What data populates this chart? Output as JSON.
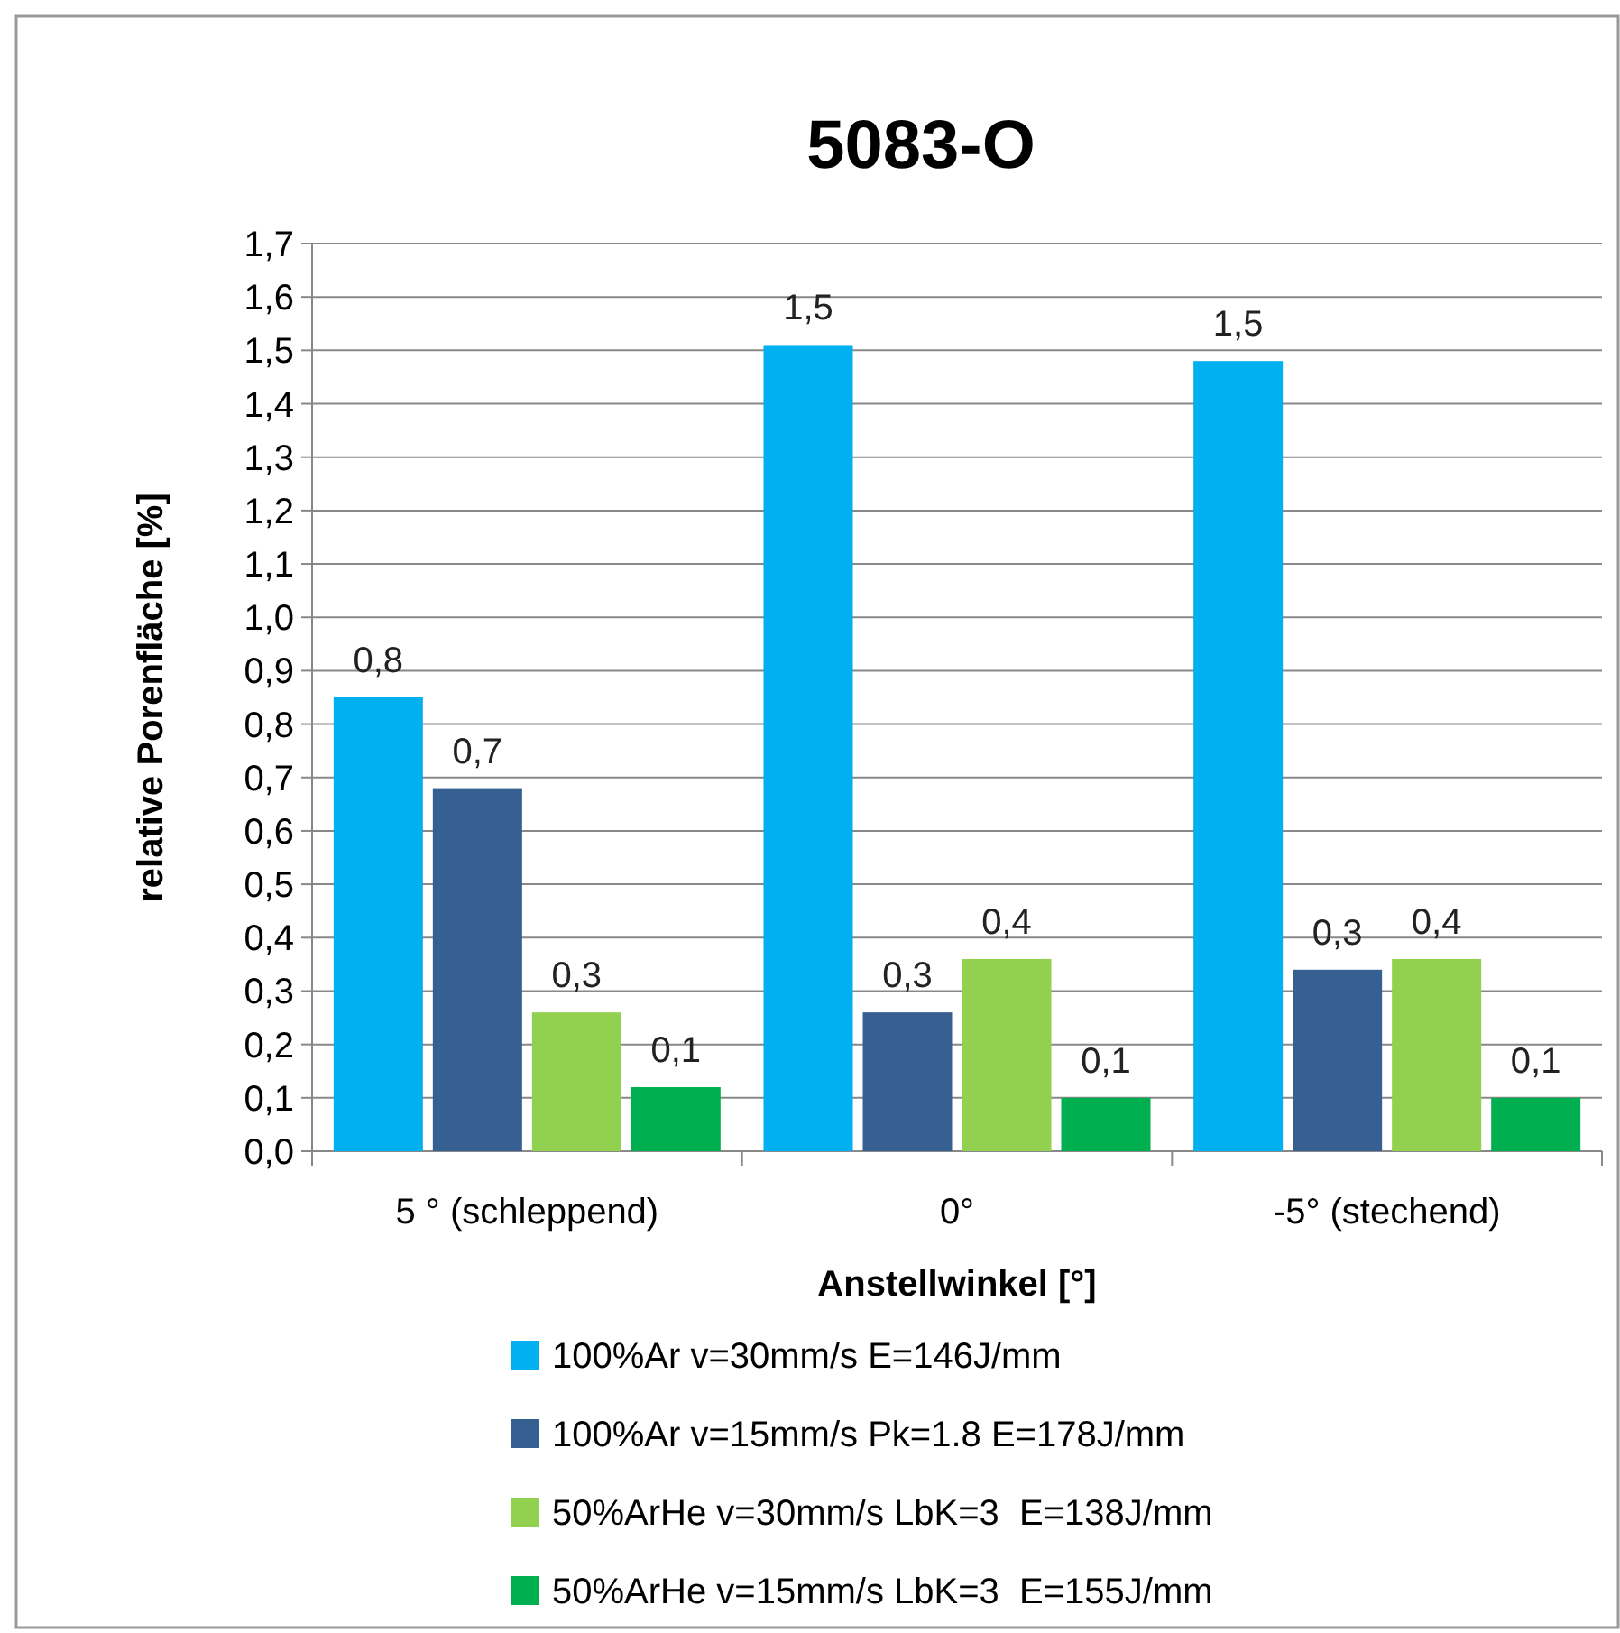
{
  "chart_data": {
    "type": "bar",
    "title": "5083-O",
    "xlabel": "Anstellwinkel [°]",
    "ylabel": "relative Porenfläche [%]",
    "categories": [
      "5 ° (schleppend)",
      "0°",
      "-5° (stechend)"
    ],
    "series": [
      {
        "name": "100%Ar v=30mm/s E=146J/mm",
        "color": "#00b0f0",
        "values": [
          0.85,
          1.51,
          1.48
        ],
        "value_labels": [
          "0,8",
          "1,5",
          "1,5"
        ]
      },
      {
        "name": "100%Ar v=15mm/s Pk=1.8 E=178J/mm",
        "color": "#376092",
        "values": [
          0.68,
          0.26,
          0.34
        ],
        "value_labels": [
          "0,7",
          "0,3",
          "0,3"
        ]
      },
      {
        "name": "50%ArHe v=30mm/s LbK=3  E=138J/mm",
        "color": "#92d050",
        "values": [
          0.26,
          0.36,
          0.36
        ],
        "value_labels": [
          "0,3",
          "0,4",
          "0,4"
        ]
      },
      {
        "name": "50%ArHe v=15mm/s LbK=3  E=155J/mm",
        "color": "#00b050",
        "values": [
          0.12,
          0.1,
          0.1
        ],
        "value_labels": [
          "0,1",
          "0,1",
          "0,1"
        ]
      }
    ],
    "ylim": [
      0,
      1.7
    ],
    "yticks": [
      {
        "value": 0,
        "label": "0,0"
      },
      {
        "value": 0.1,
        "label": "0,1"
      },
      {
        "value": 0.2,
        "label": "0,2"
      },
      {
        "value": 0.3,
        "label": "0,3"
      },
      {
        "value": 0.4,
        "label": "0,4"
      },
      {
        "value": 0.5,
        "label": "0,5"
      },
      {
        "value": 0.6,
        "label": "0,6"
      },
      {
        "value": 0.7,
        "label": "0,7"
      },
      {
        "value": 0.8,
        "label": "0,8"
      },
      {
        "value": 0.9,
        "label": "0,9"
      },
      {
        "value": 1.0,
        "label": "1,0"
      },
      {
        "value": 1.1,
        "label": "1,1"
      },
      {
        "value": 1.2,
        "label": "1,2"
      },
      {
        "value": 1.3,
        "label": "1,3"
      },
      {
        "value": 1.4,
        "label": "1,4"
      },
      {
        "value": 1.5,
        "label": "1,5"
      },
      {
        "value": 1.6,
        "label": "1,6"
      },
      {
        "value": 1.7,
        "label": "1,7"
      }
    ],
    "grid": "y",
    "legend": "bottom"
  }
}
